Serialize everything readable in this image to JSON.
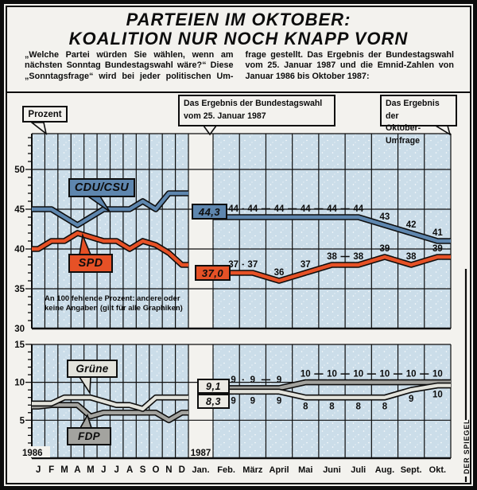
{
  "header": {
    "title_line1": "PARTEIEN IM OKTOBER:",
    "title_line2": "KOALITION NUR NOCH KNAPP VORN",
    "intro_col1": "„Welche Partei würden Sie wählen, wenn am nächsten Sonntag Bundestagswahl wäre?“ Diese „Sonntagsfrage“ wird bei jeder politischen Um-",
    "intro_col2": "frage gestellt. Das Ergebnis der Bundestagswahl vom 25. Januar 1987 und die Emnid-Zahlen von Januar 1986 bis Oktober 1987:"
  },
  "callouts": {
    "prozent": "Prozent",
    "bundestagswahl_line1": "Das Ergebnis der Bundestagswahl",
    "bundestagswahl_line2": "vom 25. Januar 1987",
    "oktober_line1": "Das Ergebnis der",
    "oktober_line2": "Oktober-Umfrage"
  },
  "note_line1": "An 100 fehlende Prozent: andere oder",
  "note_line2": "keine Angaben (gilt für alle Graphiken)",
  "credit": "DER SPIEGEL",
  "axis": {
    "year_left": "1986",
    "year_right": "1987",
    "months_1986": [
      "J",
      "F",
      "M",
      "A",
      "M",
      "J",
      "J",
      "A",
      "S",
      "O",
      "N",
      "D"
    ],
    "month_jan": "Jan.",
    "months_1987": [
      "Feb.",
      "März",
      "April",
      "Mai",
      "Juni",
      "Juli",
      "Aug.",
      "Sept.",
      "Okt."
    ]
  },
  "colors": {
    "ink": "#0d0d0d",
    "paper": "#f3f2ee",
    "chart_background": "#cbdde9",
    "cdu_csu_blue": "#5e86ae",
    "spd_orange": "#e65126",
    "fdp_gray": "#a3a39f",
    "gruene_light": "#e3e3dc"
  },
  "chart_data": [
    {
      "type": "line",
      "panel": "top",
      "ylabel": "Prozent",
      "ylim": [
        30,
        54.5
      ],
      "yticks": [
        30,
        35,
        40,
        45,
        50
      ],
      "categories_1986": [
        "J",
        "F",
        "M",
        "A",
        "M",
        "J",
        "J",
        "A",
        "S",
        "O",
        "N",
        "D"
      ],
      "election_x": "Jan. 1987",
      "categories_1987": [
        "Feb.",
        "März",
        "April",
        "Mai",
        "Juni",
        "Juli",
        "Aug.",
        "Sept.",
        "Okt."
      ],
      "series": [
        {
          "name": "CDU/CSU",
          "color": "#5e86ae",
          "values_1986_estimated": [
            45,
            45,
            44,
            43,
            44,
            45,
            45,
            45,
            46,
            45,
            47,
            47
          ],
          "election_jan_1987": 44.3,
          "election_label": "44,3",
          "values_1987": [
            44,
            44,
            44,
            44,
            44,
            44,
            43,
            42,
            41
          ],
          "label_position": "above"
        },
        {
          "name": "SPD",
          "color": "#e65126",
          "values_1986_estimated": [
            40,
            41,
            41,
            42,
            41.5,
            41,
            41,
            40,
            41,
            40.5,
            39.5,
            38
          ],
          "election_jan_1987": 37.0,
          "election_label": "37,0",
          "values_1987": [
            37,
            37,
            36,
            37,
            38,
            38,
            39,
            38,
            39
          ],
          "label_position": "above"
        }
      ]
    },
    {
      "type": "line",
      "panel": "bottom",
      "ylim": [
        0,
        15.3
      ],
      "yticks": [
        5,
        10,
        15
      ],
      "categories_1986": [
        "J",
        "F",
        "M",
        "A",
        "M",
        "J",
        "J",
        "A",
        "S",
        "O",
        "N",
        "D"
      ],
      "election_x": "Jan. 1987",
      "categories_1987": [
        "Feb.",
        "März",
        "April",
        "Mai",
        "Juni",
        "Juli",
        "Aug.",
        "Sept.",
        "Okt."
      ],
      "series": [
        {
          "name": "FDP",
          "color": "#a3a39f",
          "values_1986_estimated": [
            6.8,
            7,
            7,
            7,
            5.5,
            6,
            6,
            6,
            6,
            6,
            5,
            6
          ],
          "election_jan_1987": 9.1,
          "election_label": "9,1",
          "values_1987": [
            9,
            9,
            9,
            10,
            10,
            10,
            10,
            10,
            10
          ],
          "label_position": "above"
        },
        {
          "name": "Grüne",
          "color": "#e3e3dc",
          "values_1986_estimated": [
            7.2,
            7.2,
            8,
            8,
            8,
            7.5,
            7,
            7,
            6.5,
            8,
            8,
            8
          ],
          "election_jan_1987": 8.3,
          "election_label": "8,3",
          "values_1987": [
            9,
            9,
            9,
            8,
            8,
            8,
            8,
            9,
            10
          ],
          "label_position": "below"
        }
      ]
    }
  ]
}
